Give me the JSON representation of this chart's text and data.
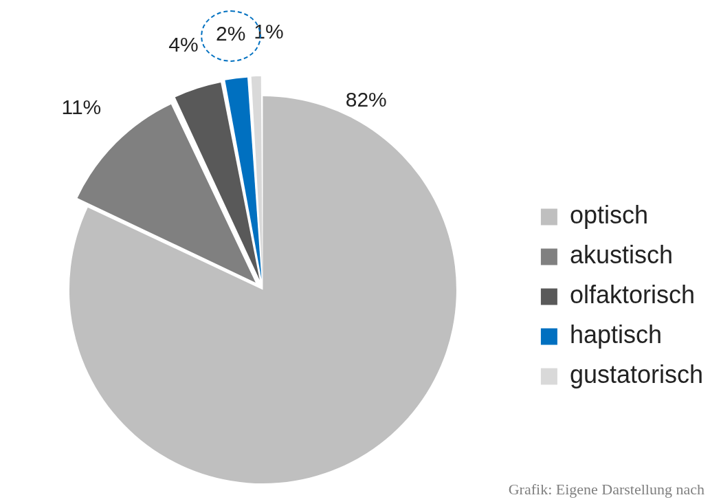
{
  "chart_data": {
    "type": "pie",
    "categories": [
      "optisch",
      "akustisch",
      "olfaktorisch",
      "haptisch",
      "gustatorisch"
    ],
    "values": [
      82,
      11,
      4,
      2,
      1
    ],
    "colors": [
      "#bfbfbf",
      "#808080",
      "#595959",
      "#0070c0",
      "#d9d9d9"
    ],
    "value_labels": [
      "82%",
      "11%",
      "4%",
      "2%",
      "1%"
    ],
    "legend": "right",
    "annotations": [
      "Grafik: Eigene Darstellung nach"
    ]
  }
}
